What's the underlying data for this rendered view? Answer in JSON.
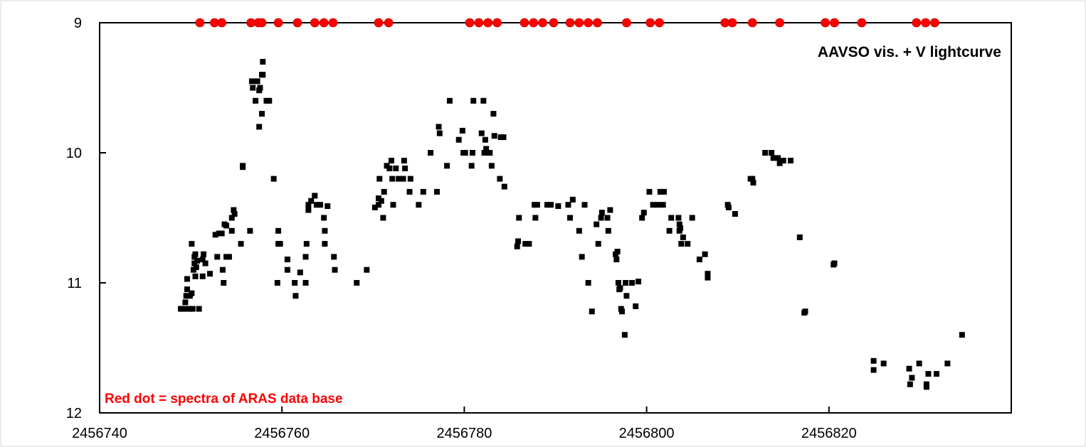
{
  "chart_data": {
    "type": "scatter",
    "title": "AAVSO vis. + V lightcurve",
    "annotation": "Red dot = spectra of ARAS data base",
    "xlabel": "",
    "ylabel": "",
    "xlim": [
      2456740,
      2456840
    ],
    "ylim": [
      12,
      9
    ],
    "y_inverted": true,
    "grid": false,
    "x_ticks": [
      2456740,
      2456760,
      2456780,
      2456800,
      2456820
    ],
    "y_ticks": [
      9,
      10,
      11,
      12
    ],
    "series": [
      {
        "marker": "square",
        "color": "#000000",
        "points": [
          [
            2456748.9,
            11.2
          ],
          [
            2456749.2,
            11.2
          ],
          [
            2456749.4,
            11.15
          ],
          [
            2456749.5,
            11.1
          ],
          [
            2456749.6,
            11.05
          ],
          [
            2456749.6,
            10.97
          ],
          [
            2456749.8,
            11.2
          ],
          [
            2456749.9,
            11.1
          ],
          [
            2456750.1,
            11.08
          ],
          [
            2456750.2,
            11.2
          ],
          [
            2456750.1,
            10.7
          ],
          [
            2456750.3,
            10.9
          ],
          [
            2456750.4,
            10.85
          ],
          [
            2456750.4,
            10.8
          ],
          [
            2456750.5,
            10.78
          ],
          [
            2456750.5,
            10.95
          ],
          [
            2456750.6,
            10.88
          ],
          [
            2456750.7,
            10.83
          ],
          [
            2456750.9,
            11.2
          ],
          [
            2456751.3,
            10.95
          ],
          [
            2456751.3,
            10.82
          ],
          [
            2456751.4,
            10.78
          ],
          [
            2456751.6,
            10.85
          ],
          [
            2456752.1,
            10.93
          ],
          [
            2456752.7,
            10.63
          ],
          [
            2456752.9,
            10.8
          ],
          [
            2456753.1,
            10.62
          ],
          [
            2456753.4,
            10.62
          ],
          [
            2456753.5,
            10.9
          ],
          [
            2456753.6,
            11
          ],
          [
            2456753.7,
            10.55
          ],
          [
            2456753.9,
            10.56
          ],
          [
            2456753.9,
            10.8
          ],
          [
            2456754.2,
            10.8
          ],
          [
            2456754.5,
            10.6
          ],
          [
            2456754.5,
            10.5
          ],
          [
            2456754.7,
            10.44
          ],
          [
            2456754.8,
            10.47
          ],
          [
            2456755.5,
            10.7
          ],
          [
            2456755.7,
            10.1
          ],
          [
            2456755.7,
            10.11
          ],
          [
            2456756.5,
            10.6
          ],
          [
            2456756.7,
            9.45
          ],
          [
            2456756.8,
            9.5
          ],
          [
            2456757.1,
            9.6
          ],
          [
            2456757.3,
            9.45
          ],
          [
            2456757.5,
            9.52
          ],
          [
            2456757.5,
            9.8
          ],
          [
            2456757.6,
            9.5
          ],
          [
            2456757.8,
            9.7
          ],
          [
            2456757.8,
            9.4
          ],
          [
            2456757.9,
            9.4
          ],
          [
            2456757.9,
            9.3
          ],
          [
            2456758.3,
            9.6
          ],
          [
            2456758.6,
            9.6
          ],
          [
            2456759.1,
            10.2
          ],
          [
            2456759.5,
            11
          ],
          [
            2456759.6,
            10.6
          ],
          [
            2456759.6,
            10.7
          ],
          [
            2456759.8,
            10.7
          ],
          [
            2456760.6,
            10.82
          ],
          [
            2456760.6,
            10.9
          ],
          [
            2456761.4,
            11
          ],
          [
            2456761.5,
            11.1
          ],
          [
            2456762,
            10.92
          ],
          [
            2456762.6,
            11
          ],
          [
            2456762.6,
            10.8
          ],
          [
            2456762.7,
            10.7
          ],
          [
            2456762.9,
            10.4
          ],
          [
            2456762.9,
            10.44
          ],
          [
            2456763.2,
            10.37
          ],
          [
            2456763.6,
            10.33
          ],
          [
            2456763.8,
            10.4
          ],
          [
            2456764.2,
            10.4
          ],
          [
            2456764.6,
            10.5
          ],
          [
            2456764.7,
            10.6
          ],
          [
            2456764.7,
            10.7
          ],
          [
            2456765,
            10.41
          ],
          [
            2456765.7,
            10.8
          ],
          [
            2456765.8,
            10.9
          ],
          [
            2456768.2,
            11
          ],
          [
            2456769.3,
            10.9
          ],
          [
            2456770.2,
            10.42
          ],
          [
            2456770.6,
            10.4
          ],
          [
            2456770.6,
            10.35
          ],
          [
            2456770.7,
            10.2
          ],
          [
            2456770.9,
            10.37
          ],
          [
            2456771.1,
            10.5
          ],
          [
            2456771.2,
            10.3
          ],
          [
            2456771.5,
            10.1
          ],
          [
            2456771.8,
            10.12
          ],
          [
            2456772,
            10.06
          ],
          [
            2456772.1,
            10.2
          ],
          [
            2456772.2,
            10.4
          ],
          [
            2456772.5,
            10.12
          ],
          [
            2456772.8,
            10.2
          ],
          [
            2456773.3,
            10.2
          ],
          [
            2456773.4,
            10.06
          ],
          [
            2456773.5,
            10.12
          ],
          [
            2456774,
            10.3
          ],
          [
            2456774.1,
            10.2
          ],
          [
            2456775,
            10.4
          ],
          [
            2456775.5,
            10.3
          ],
          [
            2456776.3,
            10
          ],
          [
            2456777,
            10.3
          ],
          [
            2456777.2,
            9.8
          ],
          [
            2456777.3,
            9.85
          ],
          [
            2456778.1,
            10.1
          ],
          [
            2456778.4,
            9.6
          ],
          [
            2456779.4,
            9.9
          ],
          [
            2456779.8,
            9.83
          ],
          [
            2456779.9,
            10
          ],
          [
            2456780.1,
            10
          ],
          [
            2456780.8,
            10.1
          ],
          [
            2456780.9,
            10
          ],
          [
            2456781,
            9.6
          ],
          [
            2456781.9,
            9.85
          ],
          [
            2456782.1,
            9.6
          ],
          [
            2456782.2,
            10
          ],
          [
            2456782.3,
            9.9
          ],
          [
            2456782.4,
            9.97
          ],
          [
            2456782.8,
            10
          ],
          [
            2456783,
            10.1
          ],
          [
            2456783.2,
            9.7
          ],
          [
            2456783.3,
            9.87
          ],
          [
            2456783.9,
            10.2
          ],
          [
            2456784,
            9.88
          ],
          [
            2456784.3,
            9.88
          ],
          [
            2456784.4,
            10.26
          ],
          [
            2456785.8,
            10.72
          ],
          [
            2456785.9,
            10.68
          ],
          [
            2456786,
            10.5
          ],
          [
            2456786.7,
            10.7
          ],
          [
            2456787.1,
            10.7
          ],
          [
            2456787.7,
            10.4
          ],
          [
            2456787.8,
            10.5
          ],
          [
            2456788,
            10.4
          ],
          [
            2456789.1,
            10.4
          ],
          [
            2456789.5,
            10.4
          ],
          [
            2456790.3,
            10.41
          ],
          [
            2456791.4,
            10.4
          ],
          [
            2456791.6,
            10.5
          ],
          [
            2456791.9,
            10.36
          ],
          [
            2456792.6,
            10.6
          ],
          [
            2456792.9,
            10.8
          ],
          [
            2456793.2,
            10.4
          ],
          [
            2456793.6,
            11
          ],
          [
            2456794,
            11.22
          ],
          [
            2456794.5,
            10.55
          ],
          [
            2456794.7,
            10.7
          ],
          [
            2456795,
            10.5
          ],
          [
            2456795.1,
            10.46
          ],
          [
            2456795.7,
            10.5
          ],
          [
            2456795.8,
            10.6
          ],
          [
            2456796,
            10.44
          ],
          [
            2456796.6,
            10.78
          ],
          [
            2456796.7,
            10.82
          ],
          [
            2456796.8,
            10.76
          ],
          [
            2456796.9,
            11
          ],
          [
            2456797,
            11.05
          ],
          [
            2456797.1,
            11.04
          ],
          [
            2456797.2,
            11.2
          ],
          [
            2456797.3,
            11.22
          ],
          [
            2456797.6,
            11.4
          ],
          [
            2456797.7,
            11
          ],
          [
            2456797.8,
            11.1
          ],
          [
            2456798.4,
            11
          ],
          [
            2456798.8,
            11.18
          ],
          [
            2456799.1,
            10.99
          ],
          [
            2456799.5,
            10.5
          ],
          [
            2456799.7,
            10.46
          ],
          [
            2456800.3,
            10.3
          ],
          [
            2456800.7,
            10.4
          ],
          [
            2456801.2,
            10.4
          ],
          [
            2456801.5,
            10.3
          ],
          [
            2456801.8,
            10.4
          ],
          [
            2456801.9,
            10.3
          ],
          [
            2456802.5,
            10.6
          ],
          [
            2456802.7,
            10.5
          ],
          [
            2456803.5,
            10.5
          ],
          [
            2456803.6,
            10.6
          ],
          [
            2456803.6,
            10.55
          ],
          [
            2456803.7,
            10.58
          ],
          [
            2456803.8,
            10.7
          ],
          [
            2456804,
            10.65
          ],
          [
            2456804.5,
            10.7
          ],
          [
            2456805,
            10.5
          ],
          [
            2456805.8,
            10.82
          ],
          [
            2456806.4,
            10.78
          ],
          [
            2456806.7,
            10.93
          ],
          [
            2456806.7,
            10.96
          ],
          [
            2456808.9,
            10.4
          ],
          [
            2456809,
            10.42
          ],
          [
            2456809.7,
            10.47
          ],
          [
            2456811.4,
            10.2
          ],
          [
            2456811.6,
            10.2
          ],
          [
            2456811.7,
            10.23
          ],
          [
            2456813,
            10
          ],
          [
            2456813.7,
            10
          ],
          [
            2456813.9,
            10.04
          ],
          [
            2456814.4,
            10.04
          ],
          [
            2456814.6,
            10.08
          ],
          [
            2456815,
            10.06
          ],
          [
            2456815.8,
            10.06
          ],
          [
            2456816.8,
            10.65
          ],
          [
            2456817.3,
            11.23
          ],
          [
            2456817.4,
            11.22
          ],
          [
            2456820.5,
            10.86
          ],
          [
            2456820.6,
            10.85
          ],
          [
            2456824.9,
            11.6
          ],
          [
            2456824.9,
            11.67
          ],
          [
            2456826,
            11.62
          ],
          [
            2456828.8,
            11.66
          ],
          [
            2456828.9,
            11.78
          ],
          [
            2456829.1,
            11.73
          ],
          [
            2456829.9,
            11.62
          ],
          [
            2456830.7,
            11.8
          ],
          [
            2456830.7,
            11.78
          ],
          [
            2456830.9,
            11.7
          ],
          [
            2456831.8,
            11.7
          ],
          [
            2456833,
            11.62
          ],
          [
            2456834.6,
            11.4
          ]
        ]
      },
      {
        "marker": "circle",
        "color": "#ff0000",
        "points": [
          [
            2456751,
            9
          ],
          [
            2456752.6,
            9
          ],
          [
            2456753.4,
            9
          ],
          [
            2456756.6,
            9
          ],
          [
            2456757.4,
            9
          ],
          [
            2456757.8,
            9
          ],
          [
            2456759.6,
            9
          ],
          [
            2456761.7,
            9
          ],
          [
            2456763.6,
            9
          ],
          [
            2456764.6,
            9
          ],
          [
            2456765.6,
            9
          ],
          [
            2456770.6,
            9
          ],
          [
            2456771.7,
            9
          ],
          [
            2456780.6,
            9
          ],
          [
            2456781.6,
            9
          ],
          [
            2456782.6,
            9
          ],
          [
            2456783.6,
            9
          ],
          [
            2456786.6,
            9
          ],
          [
            2456787.6,
            9
          ],
          [
            2456788.6,
            9
          ],
          [
            2456789.8,
            9
          ],
          [
            2456791.6,
            9
          ],
          [
            2456792.6,
            9
          ],
          [
            2456793.6,
            9
          ],
          [
            2456794.6,
            9
          ],
          [
            2456797.8,
            9
          ],
          [
            2456800.4,
            9
          ],
          [
            2456801.4,
            9
          ],
          [
            2456808.6,
            9
          ],
          [
            2456809.4,
            9
          ],
          [
            2456811.6,
            9
          ],
          [
            2456814.6,
            9
          ],
          [
            2456819.6,
            9
          ],
          [
            2456820.6,
            9
          ],
          [
            2456823.6,
            9
          ],
          [
            2456829.6,
            9
          ],
          [
            2456830.6,
            9
          ],
          [
            2456831.6,
            9
          ]
        ]
      }
    ]
  }
}
